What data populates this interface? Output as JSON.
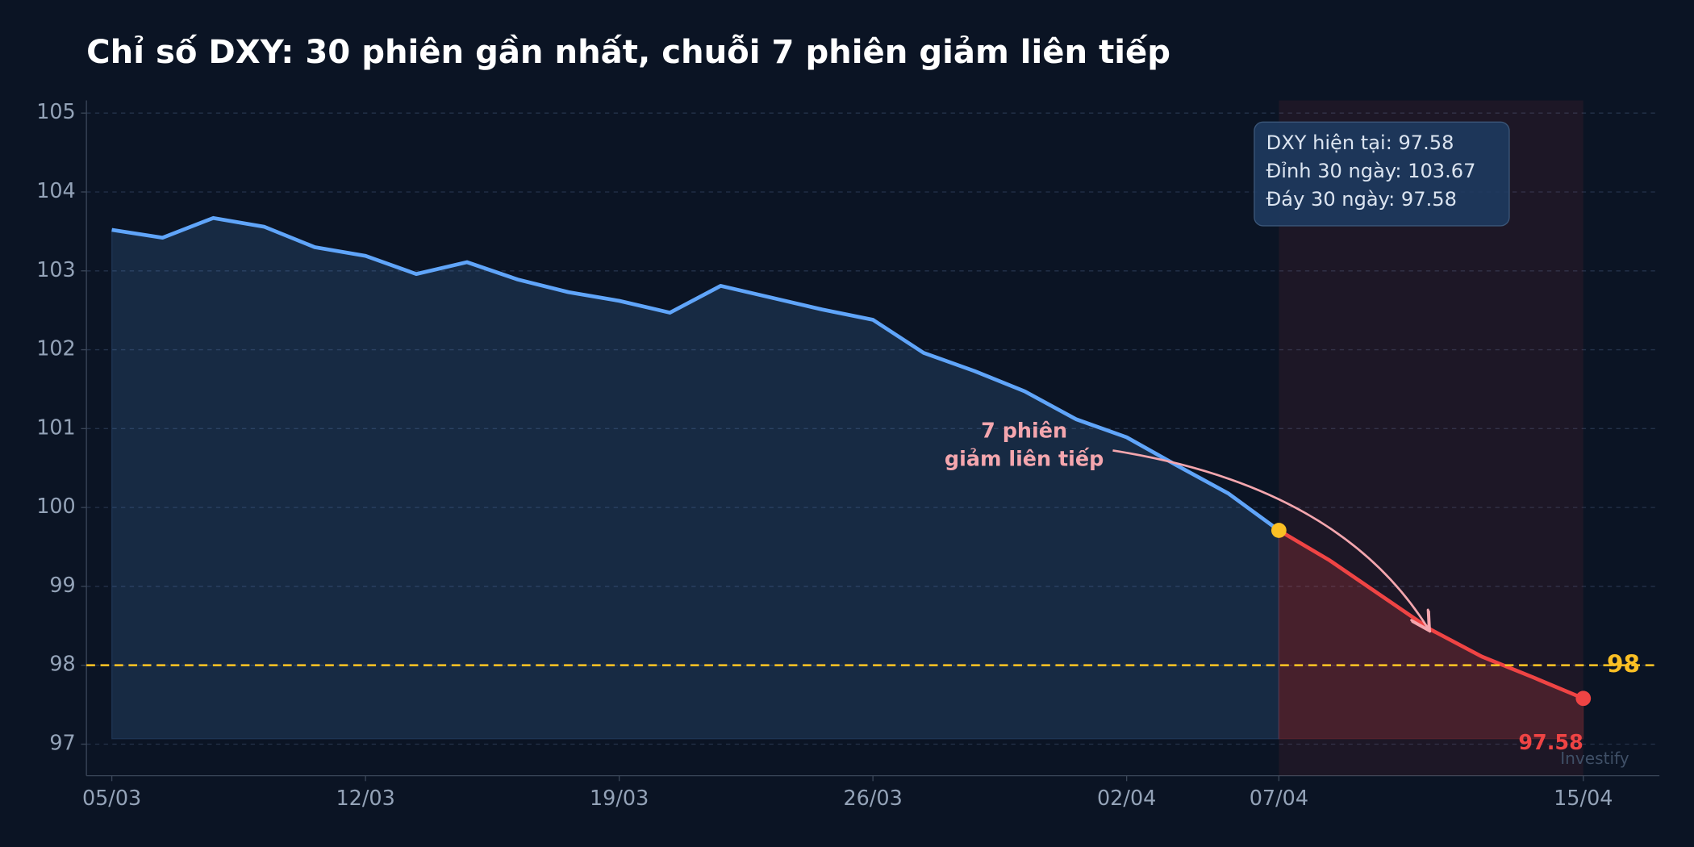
{
  "chart_data": {
    "type": "line",
    "title": "Chỉ số DXY: 30 phiên gần nhất, chuỗi 7 phiên giảm liên tiếp",
    "categories": [
      "05/03",
      null,
      null,
      null,
      null,
      "12/03",
      null,
      null,
      null,
      null,
      "19/03",
      null,
      null,
      null,
      null,
      "26/03",
      null,
      null,
      null,
      null,
      "02/04",
      null,
      null,
      "07/04",
      null,
      null,
      null,
      null,
      null,
      "15/04"
    ],
    "series": [
      {
        "color": "#60a5fa",
        "values": [
          103.52,
          103.42,
          103.67,
          103.56,
          103.3,
          103.19,
          102.96,
          103.11,
          102.89,
          102.73,
          102.62,
          102.47,
          102.81,
          102.66,
          102.51,
          102.38,
          101.96,
          101.73,
          101.47,
          101.12,
          100.89,
          100.53,
          100.18,
          99.71,
          null,
          null,
          null,
          null,
          null,
          null
        ]
      },
      {
        "color": "#ef4444",
        "endpoint_colors": [
          "#fbbf24",
          "#ef4444"
        ],
        "values": [
          null,
          null,
          null,
          null,
          null,
          null,
          null,
          null,
          null,
          null,
          null,
          null,
          null,
          null,
          null,
          null,
          null,
          null,
          null,
          null,
          null,
          null,
          null,
          99.71,
          99.33,
          98.89,
          98.45,
          98.11,
          97.85,
          97.58
        ]
      }
    ],
    "xlim": [
      -0.5,
      30.5
    ],
    "ylim": [
      96.6,
      105.16
    ],
    "yticks": [
      97,
      98,
      99,
      100,
      101,
      102,
      103,
      104,
      105
    ],
    "grid": true,
    "reference_line": {
      "value": 98,
      "color": "#fbbf24"
    },
    "info_box": [
      "DXY hiện tại: 97.58",
      "Đỉnh 30 ngày: 103.67",
      "Đáy 30 ngày: 97.58"
    ],
    "annotation": [
      "7 phiên",
      "giảm liên tiếp"
    ],
    "watermark": "Investify"
  }
}
